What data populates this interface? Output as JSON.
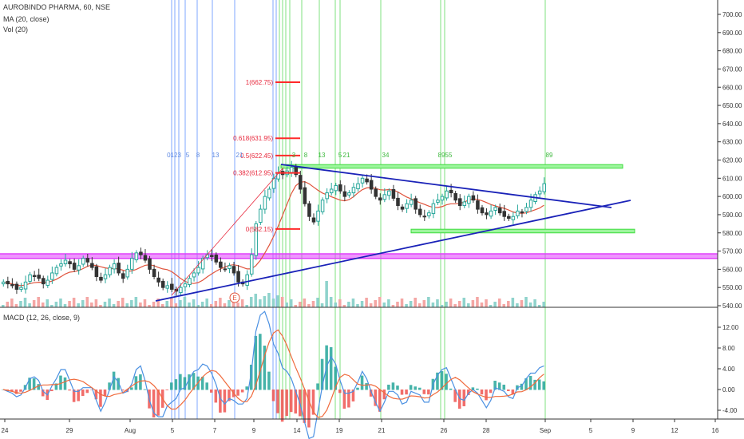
{
  "header": {
    "symbol_line": "AUROBINDO PHARMA, 60, NSE",
    "ma_line": "MA (20, close)",
    "vol_line": "Vol (20)",
    "macd_line": "MACD (12, 26, close, 9)"
  },
  "colors": {
    "up": "#26a69a",
    "down": "#333333",
    "ma": "#e0533c",
    "trend": "#1a22b8",
    "fib": "#e8283c",
    "fib_lines": "#ff2a2a",
    "vline_blue": "#7fa7ff",
    "vline_green": "#7fe17f",
    "green_zone": "#3ddc3d",
    "magenta_zone": "#e040fb",
    "macd": "#4a90e2",
    "signal": "#f06a3c",
    "hist_up": "#26a69a",
    "hist_down": "#ef5350"
  },
  "chart_data": {
    "type": "candlestick",
    "title": "AUROBINDO PHARMA, 60, NSE",
    "x_ticks": [
      "24",
      "29",
      "Aug",
      "5",
      "7",
      "9",
      "14",
      "19",
      "21",
      "26",
      "28",
      "Sep",
      "5",
      "9",
      "12",
      "16"
    ],
    "price_axis": {
      "ylim": [
        540,
        705
      ],
      "ticks": [
        "700.00",
        "690.00",
        "680.00",
        "670.00",
        "660.00",
        "650.00",
        "640.00",
        "630.00",
        "620.00",
        "610.00",
        "600.00",
        "590.00",
        "580.00",
        "570.00",
        "560.00",
        "550.00",
        "540.00"
      ]
    },
    "macd_axis": {
      "ylim": [
        -5.5,
        14
      ],
      "ticks": [
        "12.00",
        "8.00",
        "4.00",
        "0.00",
        "-4.00"
      ]
    },
    "fib_levels": [
      {
        "label": "1(662.75)",
        "value": 662.75
      },
      {
        "label": "0.618(631.95)",
        "value": 631.95
      },
      {
        "label": "0.5(622.45)",
        "value": 622.45
      },
      {
        "label": "0.382(612.95)",
        "value": 612.95
      },
      {
        "label": "0(582.15)",
        "value": 582.15
      }
    ],
    "fib_count_labels": [
      "0123",
      "5",
      "8",
      "13",
      "21",
      "3",
      "8",
      "13",
      "5",
      "21",
      "34",
      "89",
      "55",
      "89"
    ],
    "earnings_marker": "E",
    "price_path": [
      553,
      552,
      551,
      549,
      550,
      553,
      557,
      556,
      555,
      552,
      554,
      558,
      561,
      563,
      565,
      563,
      560,
      562,
      566,
      564,
      561,
      556,
      554,
      557,
      561,
      563,
      558,
      555,
      560,
      566,
      569,
      568,
      565,
      560,
      556,
      553,
      550,
      551,
      549,
      548,
      550,
      552,
      555,
      558,
      561,
      566,
      568,
      567,
      564,
      561,
      560,
      562,
      558,
      553,
      552,
      557,
      568,
      585,
      593,
      600,
      604,
      610,
      613,
      612,
      614,
      616,
      612,
      604,
      596,
      589,
      586,
      592,
      598,
      602,
      604,
      606,
      603,
      600,
      602,
      605,
      607,
      610,
      608,
      604,
      600,
      598,
      601,
      603,
      599,
      595,
      593,
      596,
      598,
      593,
      590,
      589,
      591,
      596,
      598,
      600,
      603,
      602,
      598,
      595,
      597,
      600,
      598,
      593,
      591,
      590,
      592,
      594,
      591,
      589,
      588,
      589,
      592,
      591,
      594,
      598,
      601,
      603,
      607
    ]
  }
}
